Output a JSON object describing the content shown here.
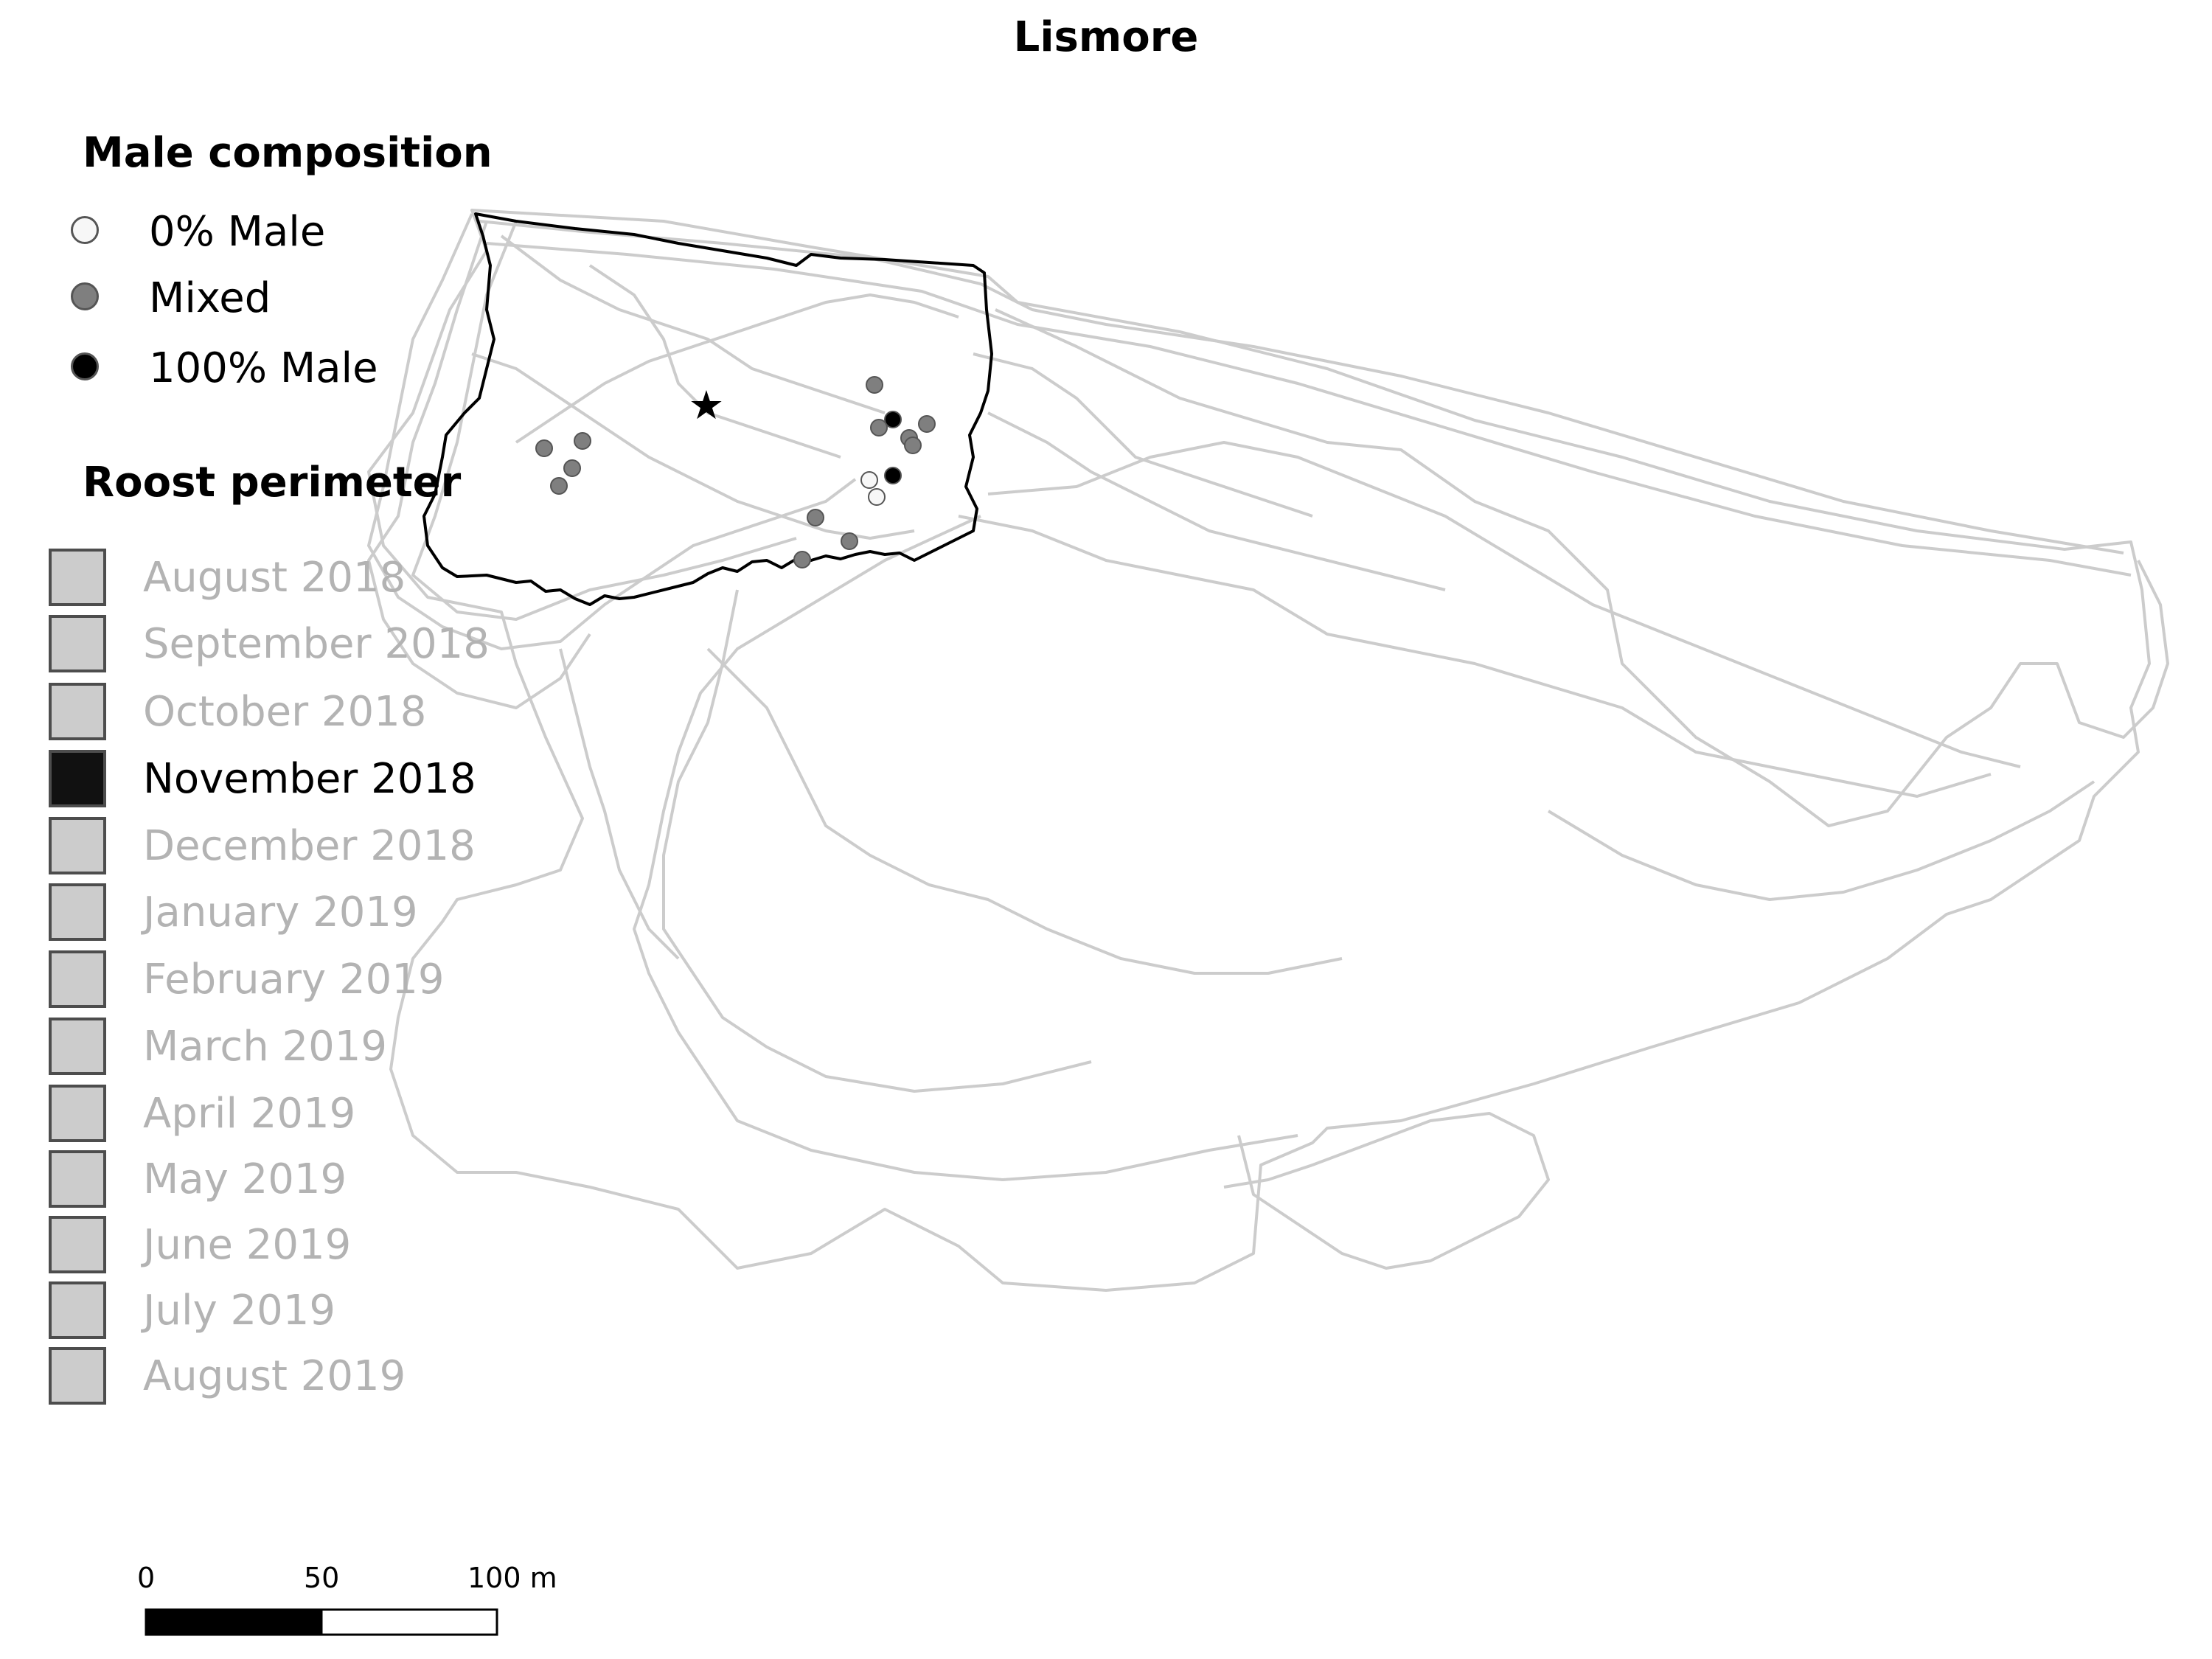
{
  "title": "Lismore",
  "legend": {
    "composition": {
      "heading": "Male composition",
      "items": [
        {
          "label": "0% Male",
          "fill": "#f7f7f7"
        },
        {
          "label": "Mixed",
          "fill": "#7f7f7f"
        },
        {
          "label": "100% Male",
          "fill": "#000000"
        }
      ]
    },
    "roost": {
      "heading": "Roost perimeter",
      "items": [
        {
          "label": "August 2018",
          "active": false
        },
        {
          "label": "September 2018",
          "active": false
        },
        {
          "label": "October 2018",
          "active": false
        },
        {
          "label": "November 2018",
          "active": true
        },
        {
          "label": "December 2018",
          "active": false
        },
        {
          "label": "January 2019",
          "active": false
        },
        {
          "label": "February 2019",
          "active": false
        },
        {
          "label": "March 2019",
          "active": false
        },
        {
          "label": "April 2019",
          "active": false
        },
        {
          "label": "May 2019",
          "active": false
        },
        {
          "label": "June 2019",
          "active": false
        },
        {
          "label": "July 2019",
          "active": false
        },
        {
          "label": "August 2019",
          "active": false
        }
      ]
    }
  },
  "scale_bar": {
    "labels": [
      "0",
      "50",
      "100 m"
    ]
  },
  "colors": {
    "active_swatch": "#111111",
    "inactive_swatch": "#cccccc",
    "active_text": "#000000",
    "inactive_text": "#b3b3b3",
    "track_line": "#cccccc",
    "roost_outline": "#000000"
  },
  "markers": {
    "roost_center": "star-icon"
  }
}
